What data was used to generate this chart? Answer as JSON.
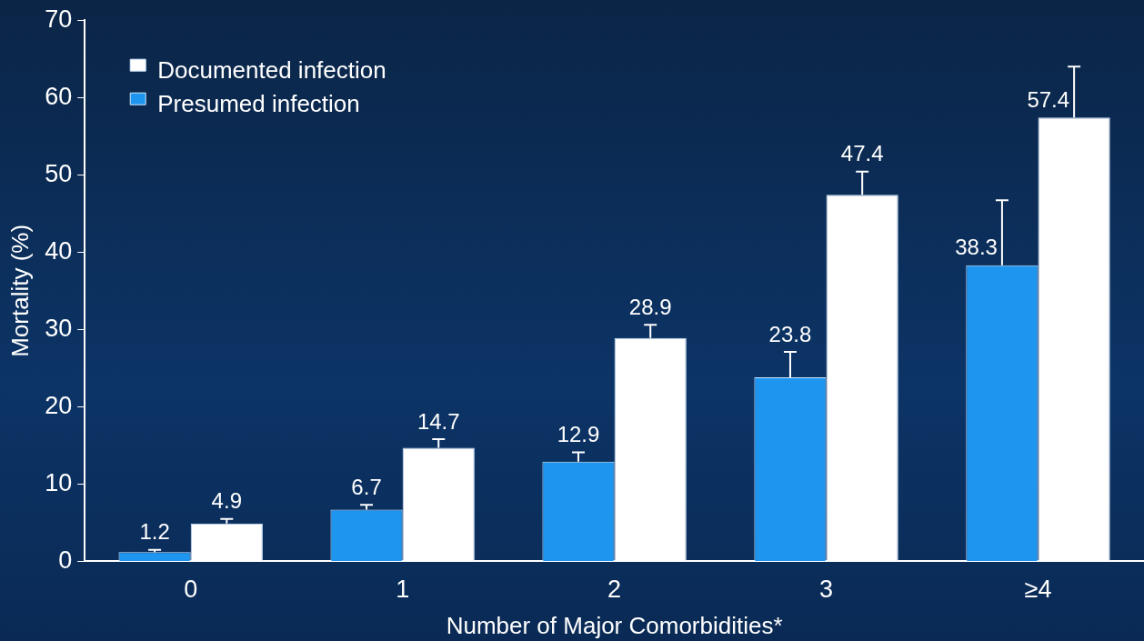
{
  "chart_data": {
    "type": "bar",
    "xlabel": "Number of Major Comorbidities*",
    "ylabel": "Mortality (%)",
    "categories": [
      "0",
      "1",
      "2",
      "3",
      "≥4"
    ],
    "series": [
      {
        "name": "Presumed infection",
        "color": "#1e96f0",
        "values": [
          1.2,
          6.7,
          12.9,
          23.8,
          38.3
        ],
        "errors": [
          [
            1.2,
            1.5
          ],
          [
            6.7,
            7.3
          ],
          [
            12.9,
            14.1
          ],
          [
            23.8,
            27.1
          ],
          [
            38.3,
            46.7
          ]
        ]
      },
      {
        "name": "Documented infection",
        "color": "#ffffff",
        "values": [
          4.9,
          14.7,
          28.9,
          47.4,
          57.4
        ],
        "errors": [
          [
            4.9,
            5.5
          ],
          [
            14.7,
            15.8
          ],
          [
            28.9,
            30.6
          ],
          [
            47.4,
            50.4
          ],
          [
            57.4,
            64.0
          ]
        ]
      }
    ],
    "ylim": [
      0,
      70
    ],
    "yticks": [
      0,
      10,
      20,
      30,
      40,
      50,
      60,
      70
    ],
    "grid": false,
    "legend": "top left",
    "data_labels": true
  }
}
